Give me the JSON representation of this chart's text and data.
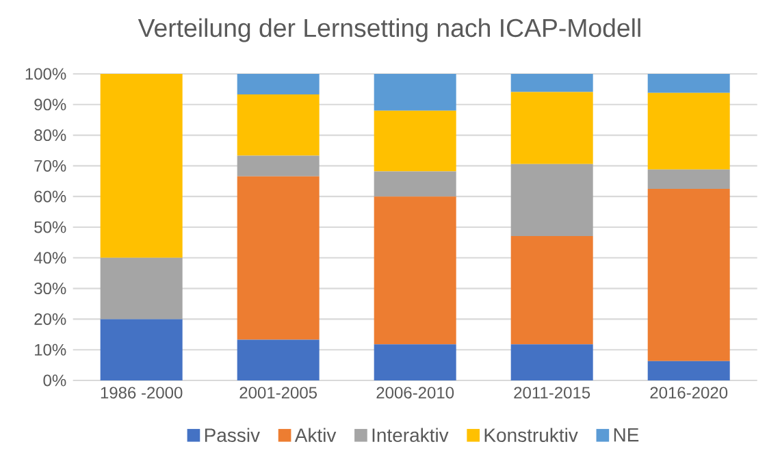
{
  "chart_data": {
    "type": "bar",
    "stacked": true,
    "title": "Verteilung der  Lernsetting nach ICAP-Modell",
    "categories": [
      "1986 -2000",
      "2001-2005",
      "2006-2010",
      "2011-2015",
      "2016-2020"
    ],
    "series": [
      {
        "name": "Passiv",
        "color": "#4472c4",
        "values": [
          20,
          13.3,
          11.8,
          11.8,
          6.3
        ]
      },
      {
        "name": "Aktiv",
        "color": "#ed7d31",
        "values": [
          0,
          53.3,
          48.2,
          35.3,
          56.2
        ]
      },
      {
        "name": "Interaktiv",
        "color": "#a5a5a5",
        "values": [
          20,
          6.7,
          8.2,
          23.5,
          6.3
        ]
      },
      {
        "name": "Konstruktiv",
        "color": "#ffc000",
        "values": [
          60,
          20,
          19.8,
          23.5,
          25
        ]
      },
      {
        "name": "NE",
        "color": "#5b9bd5",
        "values": [
          0,
          6.7,
          12.0,
          5.9,
          6.2
        ]
      }
    ],
    "ylim": [
      0,
      100
    ],
    "yticks": [
      {
        "value": 0,
        "label": "0%"
      },
      {
        "value": 10,
        "label": "10%"
      },
      {
        "value": 20,
        "label": "20%"
      },
      {
        "value": 30,
        "label": "30%"
      },
      {
        "value": 40,
        "label": "40%"
      },
      {
        "value": 50,
        "label": "50%"
      },
      {
        "value": 60,
        "label": "60%"
      },
      {
        "value": 70,
        "label": "70%"
      },
      {
        "value": 80,
        "label": "80%"
      },
      {
        "value": 90,
        "label": "90%"
      },
      {
        "value": 100,
        "label": "100%"
      }
    ],
    "grid": "y",
    "legend": "bottom"
  }
}
